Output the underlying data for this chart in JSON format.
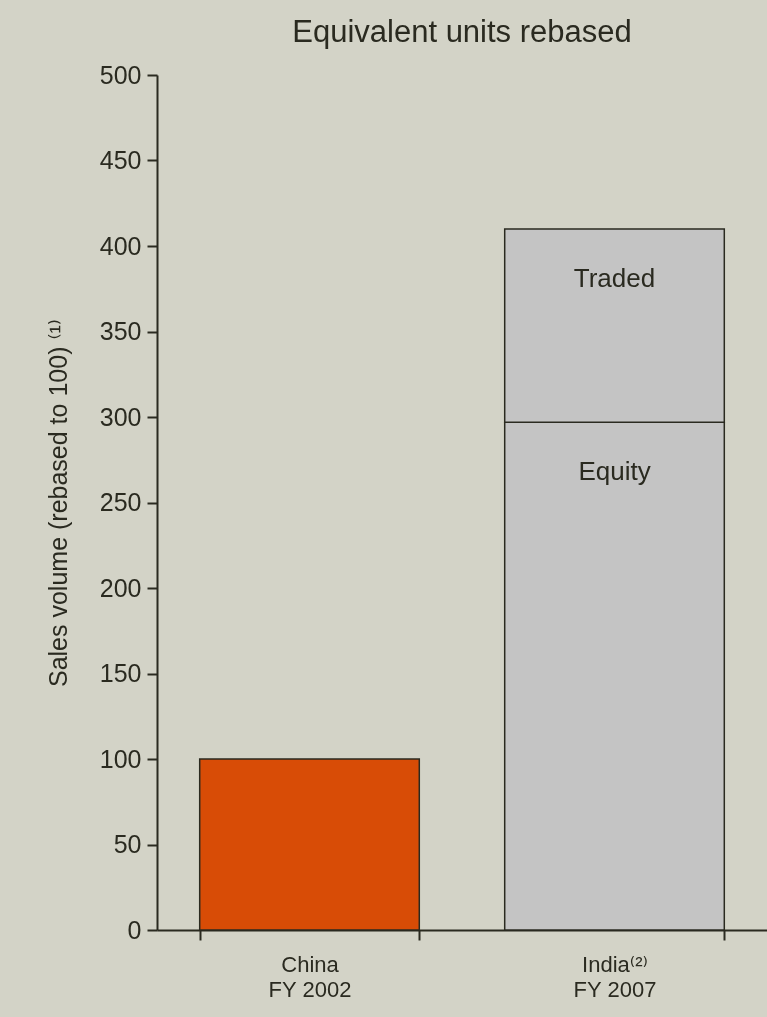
{
  "chart_data": {
    "type": "bar",
    "title": "Equivalent units rebased",
    "ylabel": "Sales volume (rebased to 100) ⁽¹⁾",
    "categories": [
      "China\nFY 2002",
      "India⁽²⁾\nFY 2007"
    ],
    "series": [
      {
        "color": "#d84c06",
        "values": [
          100,
          null
        ]
      },
      {
        "name": "Equity",
        "color": "#c4c4c4",
        "values": [
          null,
          297
        ]
      },
      {
        "name": "Traded",
        "color": "#c4c4c4",
        "values": [
          null,
          113
        ]
      }
    ],
    "stacked": true,
    "ylim": [
      0,
      500
    ],
    "yticks": [
      0,
      50,
      100,
      150,
      200,
      250,
      300,
      350,
      400,
      450,
      500
    ]
  }
}
